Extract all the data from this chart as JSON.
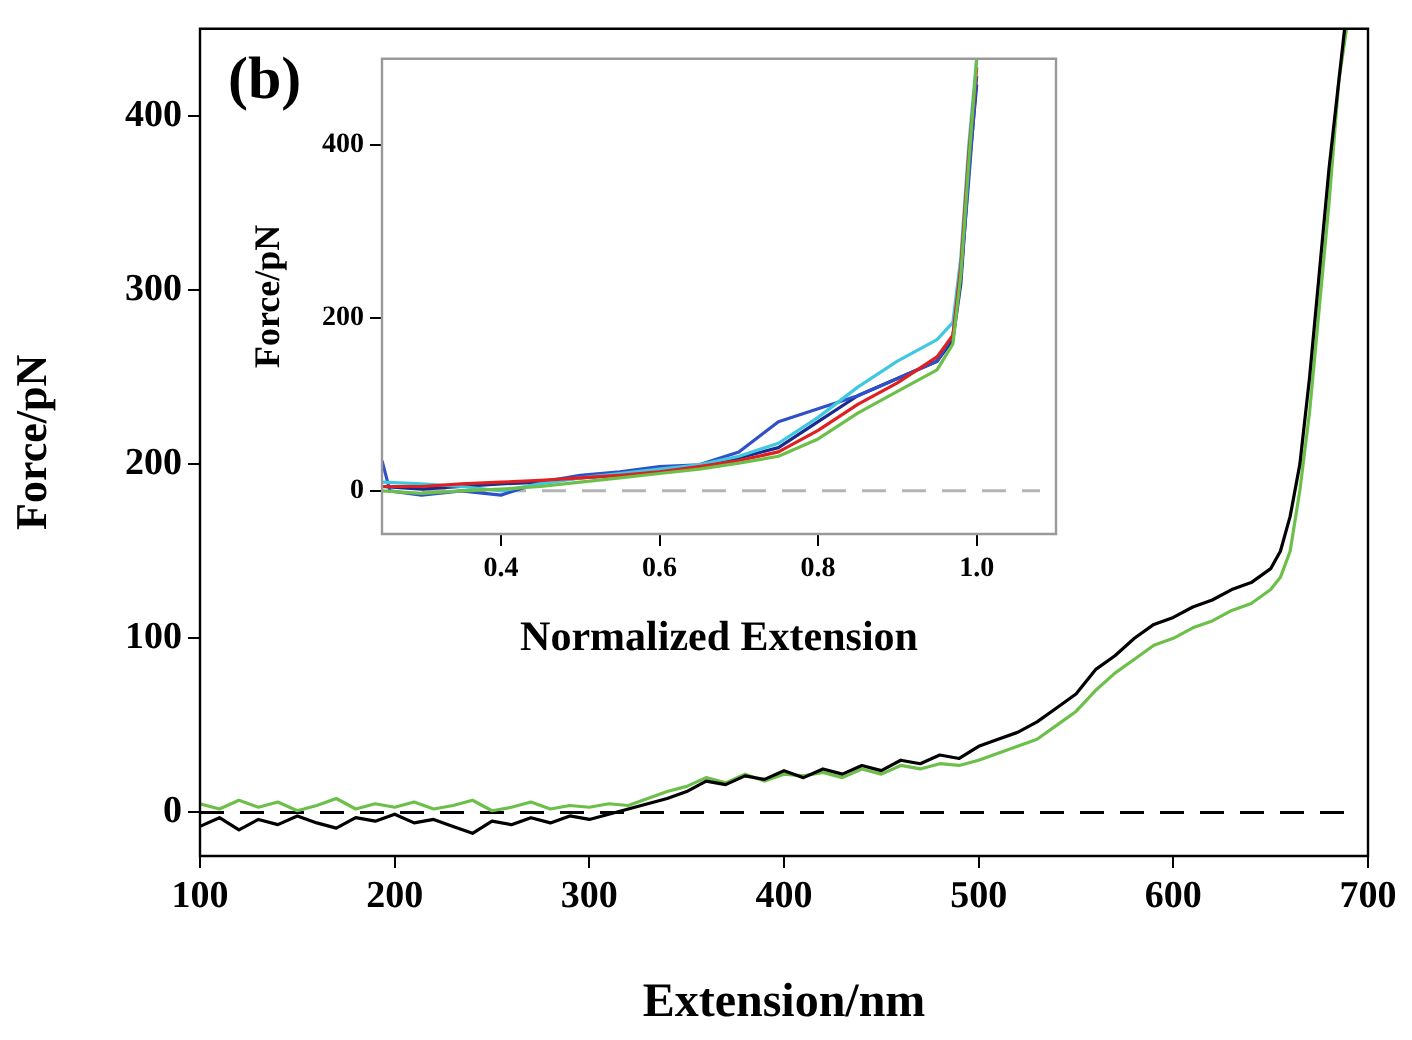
{
  "chart_data": [
    {
      "type": "line",
      "xlabel": "Extension/nm",
      "ylabel": "Force/pN",
      "annotations": [
        "(b)"
      ],
      "xlim": [
        100,
        700
      ],
      "ylim": [
        -25,
        450
      ],
      "xticks": [
        100,
        200,
        300,
        400,
        500,
        600,
        700
      ],
      "yticks": [
        0,
        100,
        200,
        300,
        400
      ],
      "grid": false,
      "legend": false,
      "marker": "none",
      "line_style": "solid",
      "ref_lines": [
        {
          "axis": "y",
          "value": 0,
          "color": "#000000",
          "line_style": "dashed"
        }
      ],
      "series": [
        {
          "color": "#000000",
          "x": [
            100,
            110,
            120,
            130,
            140,
            150,
            160,
            170,
            180,
            190,
            200,
            210,
            220,
            230,
            240,
            250,
            260,
            270,
            280,
            290,
            300,
            310,
            320,
            330,
            340,
            350,
            360,
            370,
            380,
            390,
            400,
            410,
            420,
            430,
            440,
            450,
            460,
            470,
            480,
            490,
            500,
            510,
            520,
            530,
            540,
            550,
            560,
            570,
            580,
            590,
            600,
            610,
            620,
            630,
            640,
            650,
            655,
            660,
            665,
            670,
            675,
            680,
            685,
            688
          ],
          "values": [
            -8,
            -3,
            -10,
            -4,
            -7,
            -2,
            -6,
            -9,
            -3,
            -5,
            -1,
            -6,
            -4,
            -8,
            -12,
            -5,
            -7,
            -3,
            -6,
            -2,
            -4,
            -1,
            2,
            5,
            8,
            12,
            18,
            16,
            21,
            19,
            24,
            20,
            25,
            22,
            27,
            24,
            30,
            28,
            33,
            31,
            38,
            42,
            46,
            52,
            60,
            68,
            82,
            90,
            100,
            108,
            112,
            118,
            122,
            128,
            132,
            140,
            150,
            170,
            200,
            250,
            310,
            370,
            420,
            450
          ]
        },
        {
          "color": "#6cc04a",
          "x": [
            100,
            110,
            120,
            130,
            140,
            150,
            160,
            170,
            180,
            190,
            200,
            210,
            220,
            230,
            240,
            250,
            260,
            270,
            280,
            290,
            300,
            310,
            320,
            330,
            340,
            350,
            360,
            370,
            380,
            390,
            400,
            410,
            420,
            430,
            440,
            450,
            460,
            470,
            480,
            490,
            500,
            510,
            520,
            530,
            540,
            550,
            560,
            570,
            580,
            590,
            600,
            610,
            620,
            630,
            640,
            650,
            655,
            660,
            665,
            670,
            675,
            680,
            685,
            689
          ],
          "values": [
            5,
            2,
            7,
            3,
            6,
            1,
            4,
            8,
            2,
            5,
            3,
            6,
            2,
            4,
            7,
            1,
            3,
            6,
            2,
            4,
            3,
            5,
            4,
            8,
            12,
            15,
            20,
            17,
            22,
            18,
            22,
            21,
            23,
            20,
            25,
            22,
            27,
            25,
            28,
            27,
            30,
            34,
            38,
            42,
            50,
            58,
            70,
            80,
            88,
            96,
            100,
            106,
            110,
            116,
            120,
            128,
            135,
            150,
            185,
            230,
            290,
            350,
            420,
            450
          ]
        }
      ]
    },
    {
      "type": "line",
      "xlabel": "Normalized Extension",
      "ylabel": "Force/pN",
      "xlim": [
        0.25,
        1.1
      ],
      "ylim": [
        -50,
        500
      ],
      "xticks": [
        {
          "value": 0.4,
          "label": "0.4"
        },
        {
          "value": 0.6,
          "label": "0.6"
        },
        {
          "value": 0.8,
          "label": "0.8"
        },
        {
          "value": 1.0,
          "label": "1.0"
        }
      ],
      "yticks": [
        0,
        200,
        400
      ],
      "grid": false,
      "legend": false,
      "marker": "none",
      "line_style": "solid",
      "ref_lines": [
        {
          "axis": "y",
          "value": 0,
          "color": "#b4b4b4",
          "line_style": "dashed"
        }
      ],
      "series": [
        {
          "color": "#6cc04a",
          "x": [
            0.25,
            0.3,
            0.35,
            0.4,
            0.45,
            0.5,
            0.55,
            0.6,
            0.65,
            0.7,
            0.75,
            0.8,
            0.85,
            0.9,
            0.95,
            0.97,
            0.98,
            0.99,
            1.0
          ],
          "values": [
            0,
            -3,
            0,
            2,
            5,
            10,
            15,
            20,
            25,
            32,
            40,
            60,
            90,
            115,
            140,
            170,
            250,
            380,
            500
          ]
        },
        {
          "color": "#e02020",
          "x": [
            0.25,
            0.3,
            0.35,
            0.4,
            0.45,
            0.5,
            0.55,
            0.6,
            0.65,
            0.7,
            0.75,
            0.8,
            0.85,
            0.9,
            0.95,
            0.97,
            0.98,
            0.99,
            1.0
          ],
          "values": [
            5,
            5,
            8,
            10,
            12,
            15,
            18,
            22,
            28,
            35,
            45,
            70,
            100,
            125,
            155,
            180,
            260,
            390,
            490
          ]
        },
        {
          "color": "#40c8e0",
          "x": [
            0.25,
            0.3,
            0.35,
            0.4,
            0.45,
            0.5,
            0.55,
            0.6,
            0.65,
            0.7,
            0.75,
            0.8,
            0.85,
            0.9,
            0.95,
            0.97,
            0.98,
            0.99,
            1.0
          ],
          "values": [
            10,
            8,
            5,
            0,
            8,
            15,
            20,
            25,
            30,
            40,
            55,
            85,
            120,
            150,
            175,
            195,
            270,
            400,
            500
          ]
        },
        {
          "color": "#3050c8",
          "x": [
            0.25,
            0.26,
            0.3,
            0.35,
            0.4,
            0.45,
            0.5,
            0.55,
            0.6,
            0.65,
            0.7,
            0.75,
            0.8,
            0.85,
            0.9,
            0.95,
            0.97,
            0.98,
            0.99,
            1.0
          ],
          "values": [
            35,
            0,
            -5,
            0,
            -5,
            10,
            18,
            22,
            28,
            30,
            45,
            80,
            95,
            110,
            130,
            150,
            180,
            250,
            360,
            480
          ]
        },
        {
          "color": "#1a2a90",
          "x": [
            0.25,
            0.3,
            0.35,
            0.4,
            0.45,
            0.5,
            0.55,
            0.6,
            0.65,
            0.7,
            0.75,
            0.8,
            0.85,
            0.9,
            0.95,
            0.97,
            0.98,
            0.99,
            1.0
          ],
          "values": [
            5,
            2,
            5,
            8,
            10,
            15,
            18,
            22,
            28,
            38,
            50,
            80,
            110,
            130,
            150,
            175,
            240,
            370,
            470
          ]
        }
      ]
    }
  ]
}
